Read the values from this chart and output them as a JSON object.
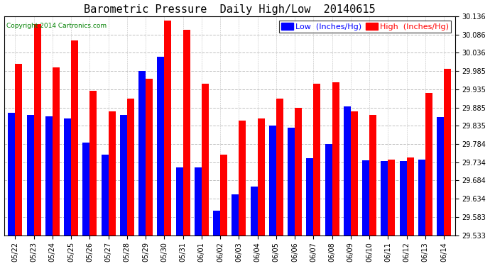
{
  "title": "Barometric Pressure  Daily High/Low  20140615",
  "copyright": "Copyright 2014 Cartronics.com",
  "legend_low": "Low  (Inches/Hg)",
  "legend_high": "High  (Inches/Hg)",
  "dates": [
    "05/22",
    "05/23",
    "05/24",
    "05/25",
    "05/26",
    "05/27",
    "05/28",
    "05/29",
    "05/30",
    "05/31",
    "06/01",
    "06/02",
    "06/03",
    "06/04",
    "06/05",
    "06/06",
    "06/07",
    "06/08",
    "06/09",
    "06/10",
    "06/11",
    "06/12",
    "06/13",
    "06/14"
  ],
  "low": [
    29.87,
    29.865,
    29.86,
    29.855,
    29.788,
    29.755,
    29.865,
    29.985,
    30.025,
    29.72,
    29.72,
    29.6,
    29.645,
    29.668,
    29.835,
    29.83,
    29.745,
    29.785,
    29.888,
    29.74,
    29.738,
    29.737,
    29.742,
    29.858
  ],
  "high": [
    30.005,
    30.115,
    29.995,
    30.07,
    29.93,
    29.875,
    29.91,
    29.965,
    30.125,
    30.1,
    29.95,
    29.755,
    29.848,
    29.855,
    29.91,
    29.885,
    29.95,
    29.955,
    29.875,
    29.865,
    29.742,
    29.748,
    29.925,
    29.992
  ],
  "ylim_min": 29.533,
  "ylim_max": 30.136,
  "yticks": [
    29.533,
    29.583,
    29.634,
    29.684,
    29.734,
    29.784,
    29.835,
    29.885,
    29.935,
    29.985,
    30.036,
    30.086,
    30.136
  ],
  "low_color": "#0000FF",
  "high_color": "#FF0000",
  "bg_color": "#FFFFFF",
  "grid_color": "#C0C0C0",
  "bar_width": 0.38,
  "title_fontsize": 11,
  "tick_fontsize": 7,
  "legend_fontsize": 8
}
